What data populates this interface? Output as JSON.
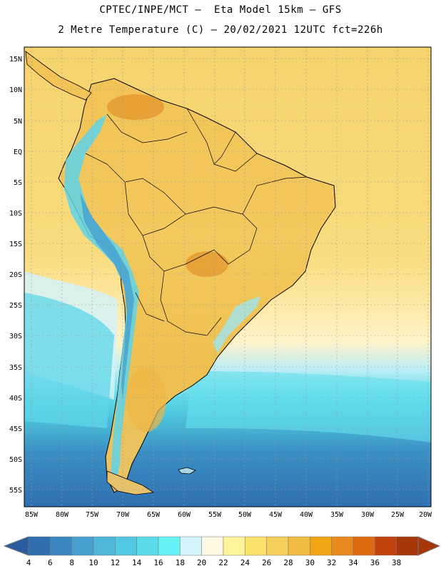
{
  "header": {
    "line1": "CPTEC/INPE/MCT –  Eta Model 15km – GFS",
    "line2": "2 Metre Temperature (C) – 20/02/2021 12UTC fct=226h"
  },
  "axes": {
    "lat_labels": [
      "15N",
      "10N",
      "5N",
      "EQ",
      "5S",
      "10S",
      "15S",
      "20S",
      "25S",
      "30S",
      "35S",
      "40S",
      "45S",
      "50S",
      "55S"
    ],
    "lon_labels": [
      "85W",
      "80W",
      "75W",
      "70W",
      "65W",
      "60W",
      "55W",
      "50W",
      "45W",
      "40W",
      "35W",
      "30W",
      "25W",
      "20W"
    ]
  },
  "colorbar": {
    "labels": [
      "4",
      "6",
      "8",
      "10",
      "12",
      "14",
      "16",
      "18",
      "20",
      "22",
      "24",
      "26",
      "28",
      "30",
      "32",
      "34",
      "36",
      "38"
    ],
    "colors": [
      "#2f6fb0",
      "#3a86c0",
      "#46a0cf",
      "#4db6d9",
      "#52c9e2",
      "#59dbe9",
      "#66f2f5",
      "#d3f6fb",
      "#fff8e2",
      "#fff49a",
      "#fbe06a",
      "#f6cf5a",
      "#f0bd40",
      "#f0a612",
      "#e88a1e",
      "#de6a10",
      "#c2410c",
      "#a63708"
    ]
  },
  "colors": {
    "ocean_warm": "#f8d46a",
    "land": "#f4cc5e",
    "land_hot": "#e9a43a",
    "andes_cold": "#5ed3ea",
    "south_cold": "#2f6fb0"
  }
}
